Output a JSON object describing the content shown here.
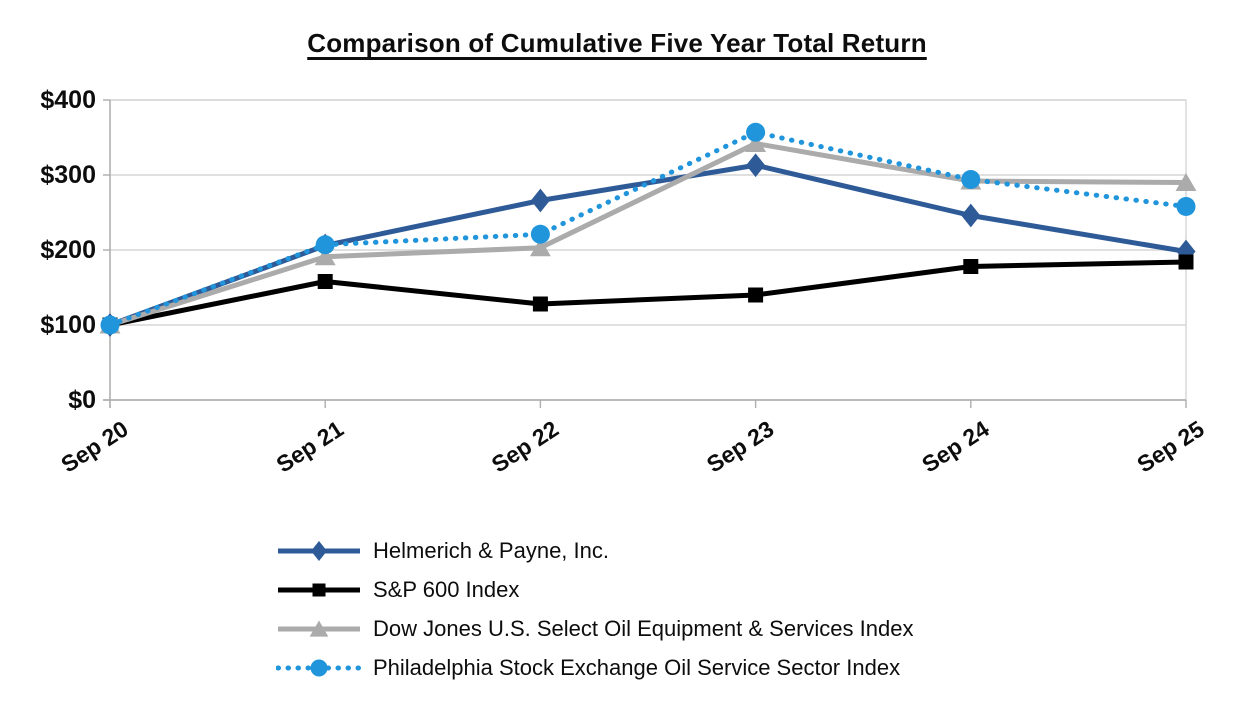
{
  "chart_data": {
    "type": "line",
    "title": "Comparison of Cumulative Five Year Total Return",
    "categories": [
      "Sep 20",
      "Sep 21",
      "Sep 22",
      "Sep 23",
      "Sep 24",
      "Sep 25"
    ],
    "xlabel": "",
    "ylabel": "",
    "ylim": [
      0,
      400
    ],
    "y_tick_values": [
      0,
      100,
      200,
      300,
      400
    ],
    "y_tick_labels": [
      "$0",
      "$100",
      "$200",
      "$300",
      "$400"
    ],
    "grid": true,
    "legend_position": "bottom-left",
    "series": [
      {
        "name": "Helmerich & Payne, Inc.",
        "color": "#2E5B97",
        "marker": "diamond",
        "line": "solid",
        "values": [
          100,
          206,
          266,
          313,
          246,
          198
        ]
      },
      {
        "name": "S&P 600 Index",
        "color": "#000000",
        "marker": "square",
        "line": "solid",
        "values": [
          100,
          158,
          128,
          140,
          178,
          184
        ]
      },
      {
        "name": "Dow Jones U.S. Select Oil Equipment & Services Index",
        "color": "#ABABAB",
        "marker": "triangle",
        "line": "solid",
        "values": [
          100,
          191,
          203,
          342,
          292,
          290
        ]
      },
      {
        "name": "Philadelphia Stock Exchange Oil Service Sector Index",
        "color": "#2095DB",
        "marker": "circle",
        "line": "dotted",
        "values": [
          100,
          207,
          221,
          357,
          294,
          258
        ]
      }
    ],
    "colors": {
      "gridline": "#D6D6D6",
      "axis": "#ADADAD",
      "tick_label": "#0d0d0d"
    }
  }
}
